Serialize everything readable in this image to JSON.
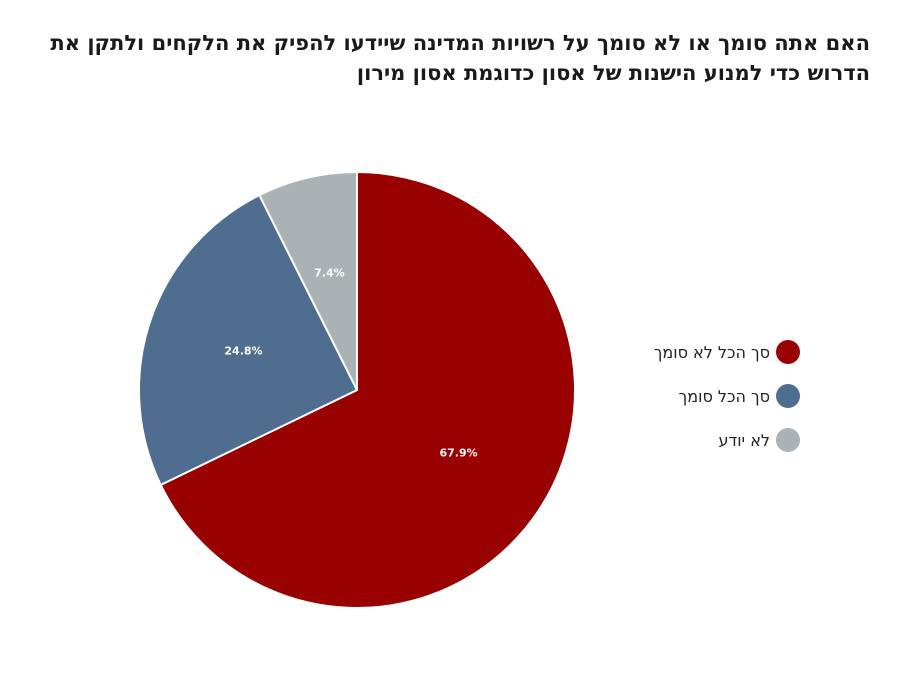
{
  "chart_data": {
    "type": "pie",
    "title_lines": [
      "האם אתה סומך או לא סומך על רשויות המדינה שיידעו להפיק את הלקחים ולתקן את",
      "הדרוש כדי למנוע הישנות של אסון כדוגמת אסון מירון"
    ],
    "slices": [
      {
        "label": "סך הכל לא סומך",
        "value": 67.9,
        "display": "67.9%",
        "color": "#990000"
      },
      {
        "label": "סך הכל סומך",
        "value": 24.8,
        "display": "24.8%",
        "color": "#4f6d8f"
      },
      {
        "label": "לא יודע",
        "value": 7.4,
        "display": "7.4%",
        "color": "#aab2b3"
      }
    ],
    "legend_position": "right"
  }
}
